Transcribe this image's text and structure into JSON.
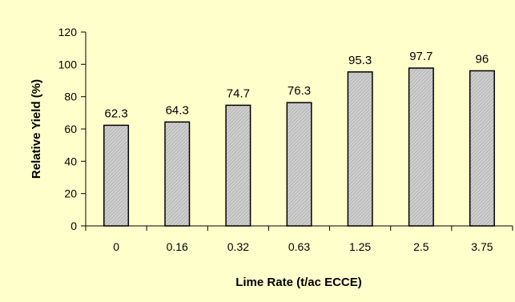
{
  "chart_data": {
    "type": "bar",
    "title": "",
    "xlabel": "Lime Rate (t/ac ECCE)",
    "ylabel": "Relative Yield (%)",
    "categories": [
      "0",
      "0.16",
      "0.32",
      "0.63",
      "1.25",
      "2.5",
      "3.75"
    ],
    "values": [
      62.3,
      64.3,
      74.7,
      76.3,
      95.3,
      97.7,
      96
    ],
    "data_labels": [
      "62.3",
      "64.3",
      "74.7",
      "76.3",
      "95.3",
      "97.7",
      "96"
    ],
    "y_ticks": [
      "0",
      "20",
      "40",
      "60",
      "80",
      "100",
      "120"
    ],
    "ylim": [
      0,
      120
    ],
    "grid": false,
    "legend": "none",
    "colors": {
      "background": "#ffffcc",
      "bar_fill": "#cfcfcf",
      "bar_stroke": "#000000",
      "bar_pattern": "#9a9a9a"
    }
  }
}
